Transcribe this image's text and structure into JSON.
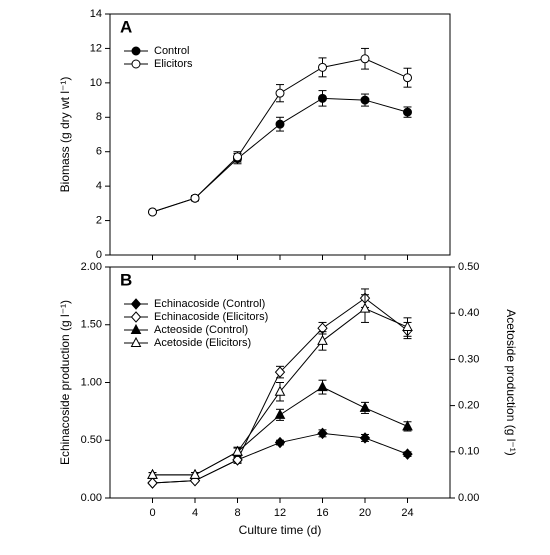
{
  "chart_data": [
    {
      "type": "line",
      "panel_label": "A",
      "ylabel": "Biomass (g dry wt l⁻¹)",
      "x": [
        0,
        4,
        8,
        12,
        16,
        20,
        24
      ],
      "xlim": [
        -4,
        28
      ],
      "xticks": [
        0,
        4,
        8,
        12,
        16,
        20,
        24
      ],
      "ylim": [
        0,
        14
      ],
      "yticks": [
        0,
        2,
        4,
        6,
        8,
        10,
        12,
        14
      ],
      "legend": "upper left",
      "series": [
        {
          "name": "Control",
          "color": "#000000",
          "marker": "circle",
          "filled": true,
          "values": [
            2.5,
            3.3,
            5.6,
            7.6,
            9.1,
            9.0,
            8.3
          ],
          "errors": [
            0.1,
            0.15,
            0.3,
            0.4,
            0.45,
            0.35,
            0.3
          ]
        },
        {
          "name": "Elicitors",
          "color": "#000000",
          "marker": "circle",
          "filled": false,
          "values": [
            2.5,
            3.3,
            5.7,
            9.4,
            10.9,
            11.4,
            10.3
          ],
          "errors": [
            0.1,
            0.15,
            0.3,
            0.5,
            0.55,
            0.6,
            0.55
          ]
        }
      ]
    },
    {
      "type": "line",
      "panel_label": "B",
      "ylabel": "Echinacoside production (g l⁻¹)",
      "y2label": "Acetoside production (g l⁻¹)",
      "xlabel": "Culture time (d)",
      "x": [
        0,
        4,
        8,
        12,
        16,
        20,
        24
      ],
      "xlim": [
        -4,
        28
      ],
      "xticks": [
        0,
        4,
        8,
        12,
        16,
        20,
        24
      ],
      "ylim": [
        0,
        2
      ],
      "yticks": [
        {
          "value": 0,
          "label": "0.00"
        },
        {
          "value": 0.5,
          "label": "0.50"
        },
        {
          "value": 1,
          "label": "1.00"
        },
        {
          "value": 1.5,
          "label": "1.50"
        },
        {
          "value": 2,
          "label": "2.00"
        }
      ],
      "y2lim": [
        0,
        0.5
      ],
      "y2ticks": [
        {
          "value": 0,
          "label": "0.00"
        },
        {
          "value": 0.1,
          "label": "0.10"
        },
        {
          "value": 0.2,
          "label": "0.20"
        },
        {
          "value": 0.3,
          "label": "0.30"
        },
        {
          "value": 0.4,
          "label": "0.40"
        },
        {
          "value": 0.5,
          "label": "0.50"
        }
      ],
      "legend": "upper left",
      "series": [
        {
          "name": "Echinacoside (Control)",
          "color": "#000000",
          "marker": "diamond",
          "filled": true,
          "values": [
            0.13,
            0.15,
            0.33,
            0.48,
            0.56,
            0.52,
            0.38
          ],
          "errors": [
            0.01,
            0.01,
            0.02,
            0.02,
            0.03,
            0.03,
            0.02
          ]
        },
        {
          "name": "Echinacoside (Elicitors)",
          "color": "#000000",
          "marker": "diamond",
          "filled": false,
          "values": [
            0.13,
            0.15,
            0.33,
            1.09,
            1.47,
            1.73,
            1.45
          ],
          "errors": [
            0.01,
            0.01,
            0.03,
            0.05,
            0.05,
            0.08,
            0.07
          ]
        },
        {
          "name": "Acteoside (Control)",
          "color": "#000000",
          "marker": "triangle",
          "filled": true,
          "axis": "y2",
          "values": [
            0.05,
            0.05,
            0.1,
            0.18,
            0.24,
            0.195,
            0.155
          ],
          "errors": [
            0.005,
            0.005,
            0.008,
            0.012,
            0.015,
            0.012,
            0.01
          ]
        },
        {
          "name": "Acetoside (Elicitors)",
          "color": "#000000",
          "marker": "triangle",
          "filled": false,
          "axis": "y2",
          "values": [
            0.05,
            0.05,
            0.1,
            0.23,
            0.34,
            0.41,
            0.37
          ],
          "errors": [
            0.005,
            0.005,
            0.01,
            0.02,
            0.02,
            0.03,
            0.02
          ]
        }
      ]
    }
  ]
}
